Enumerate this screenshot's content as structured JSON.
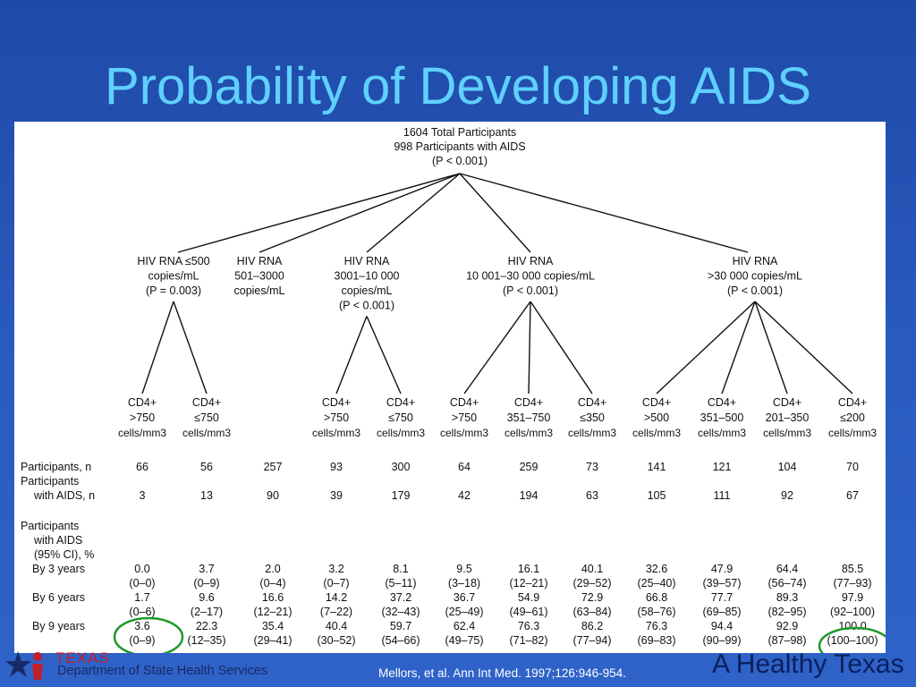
{
  "slide": {
    "title": "Probability of Developing AIDS"
  },
  "root": [
    "1604 Total Participants",
    "998 Participants with AIDS",
    "(P < 0.001)"
  ],
  "groups": [
    {
      "lines": [
        "HIV RNA ≤500",
        "copies/mL",
        "(P = 0.003)"
      ]
    },
    {
      "lines": [
        "HIV RNA",
        "501–3000",
        "copies/mL"
      ]
    },
    {
      "lines": [
        "HIV RNA",
        "3001–10 000",
        "copies/mL",
        "(P < 0.001)"
      ]
    },
    {
      "lines": [
        "HIV RNA",
        "10 001–30 000  copies/mL",
        "(P < 0.001)"
      ]
    },
    {
      "lines": [
        "HIV RNA",
        ">30 000  copies/mL",
        "(P < 0.001)"
      ]
    }
  ],
  "columns": [
    {
      "cd4": [
        "CD4+",
        ">750",
        "cells/mm3"
      ],
      "n": "66",
      "aids_n": "3",
      "y3": "0.0",
      "y3ci": "(0–0)",
      "y6": "1.7",
      "y6ci": "(0–6)",
      "y9": "3.6",
      "y9ci": "(0–9)"
    },
    {
      "cd4": [
        "CD4+",
        "≤750",
        "cells/mm3"
      ],
      "n": "56",
      "aids_n": "13",
      "y3": "3.7",
      "y3ci": "(0–9)",
      "y6": "9.6",
      "y6ci": "(2–17)",
      "y9": "22.3",
      "y9ci": "(12–35)"
    },
    {
      "cd4": [],
      "n": "257",
      "aids_n": "90",
      "y3": "2.0",
      "y3ci": "(0–4)",
      "y6": "16.6",
      "y6ci": "(12–21)",
      "y9": "35.4",
      "y9ci": "(29–41)"
    },
    {
      "cd4": [
        "CD4+",
        ">750",
        "cells/mm3"
      ],
      "n": "93",
      "aids_n": "39",
      "y3": "3.2",
      "y3ci": "(0–7)",
      "y6": "14.2",
      "y6ci": "(7–22)",
      "y9": "40.4",
      "y9ci": "(30–52)"
    },
    {
      "cd4": [
        "CD4+",
        "≤750",
        "cells/mm3"
      ],
      "n": "300",
      "aids_n": "179",
      "y3": "8.1",
      "y3ci": "(5–11)",
      "y6": "37.2",
      "y6ci": "(32–43)",
      "y9": "59.7",
      "y9ci": "(54–66)"
    },
    {
      "cd4": [
        "CD4+",
        ">750",
        "cells/mm3"
      ],
      "n": "64",
      "aids_n": "42",
      "y3": "9.5",
      "y3ci": "(3–18)",
      "y6": "36.7",
      "y6ci": "(25–49)",
      "y9": "62.4",
      "y9ci": "(49–75)"
    },
    {
      "cd4": [
        "CD4+",
        "351–750",
        "cells/mm3"
      ],
      "n": "259",
      "aids_n": "194",
      "y3": "16.1",
      "y3ci": "(12–21)",
      "y6": "54.9",
      "y6ci": "(49–61)",
      "y9": "76.3",
      "y9ci": "(71–82)"
    },
    {
      "cd4": [
        "CD4+",
        "≤350",
        "cells/mm3"
      ],
      "n": "73",
      "aids_n": "63",
      "y3": "40.1",
      "y3ci": "(29–52)",
      "y6": "72.9",
      "y6ci": "(63–84)",
      "y9": "86.2",
      "y9ci": "(77–94)"
    },
    {
      "cd4": [
        "CD4+",
        ">500",
        "cells/mm3"
      ],
      "n": "141",
      "aids_n": "105",
      "y3": "32.6",
      "y3ci": "(25–40)",
      "y6": "66.8",
      "y6ci": "(58–76)",
      "y9": "76.3",
      "y9ci": "(69–83)"
    },
    {
      "cd4": [
        "CD4+",
        "351–500",
        "cells/mm3"
      ],
      "n": "121",
      "aids_n": "111",
      "y3": "47.9",
      "y3ci": "(39–57)",
      "y6": "77.7",
      "y6ci": "(69–85)",
      "y9": "94.4",
      "y9ci": "(90–99)"
    },
    {
      "cd4": [
        "CD4+",
        "201–350",
        "cells/mm3"
      ],
      "n": "104",
      "aids_n": "92",
      "y3": "64.4",
      "y3ci": "(56–74)",
      "y6": "89.3",
      "y6ci": "(82–95)",
      "y9": "92.9",
      "y9ci": "(87–98)"
    },
    {
      "cd4": [
        "CD4+",
        "≤200",
        "cells/mm3"
      ],
      "n": "70",
      "aids_n": "67",
      "y3": "85.5",
      "y3ci": "(77–93)",
      "y6": "97.9",
      "y6ci": "(92–100)",
      "y9": "100.0",
      "y9ci": "(100–100)"
    }
  ],
  "row_labels": {
    "participants": "Participants, n",
    "aids_1": "Participants",
    "aids_2": "with AIDS, n",
    "pct_1": "Participants",
    "pct_2": "with AIDS",
    "pct_3": "(95% CI), %",
    "y3": "By 3 years",
    "y6": "By 6 years",
    "y9": "By 9 years"
  },
  "footer": {
    "logo_word": "TEXAS",
    "department": "Department of State Health Services",
    "citation": "Mellors, et al. Ann Int Med. 1997;126:946-954.",
    "brand": "A Healthy Texas"
  },
  "colors": {
    "title": "#5fd0ff",
    "highlight_circle": "#1f9a2a",
    "background": "#2a5cc0"
  }
}
